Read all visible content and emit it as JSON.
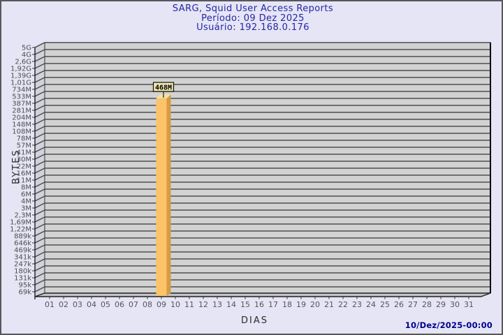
{
  "header": {
    "title": "SARG, Squid User Access Reports",
    "period_line": "Período: 09 Dez 2025",
    "user_line": "Usuário: 192.168.0.176"
  },
  "footer": {
    "timestamp": "10/Dez/2025-00:00"
  },
  "chart_data": {
    "type": "bar",
    "title": "SARG, Squid User Access Reports",
    "subtitle": [
      "Período: 09 Dez 2025",
      "Usuário: 192.168.0.176"
    ],
    "xlabel": "DIAS",
    "ylabel": "BYTES",
    "x_categories": [
      "01",
      "02",
      "03",
      "04",
      "05",
      "06",
      "07",
      "08",
      "09",
      "10",
      "11",
      "12",
      "13",
      "14",
      "15",
      "16",
      "17",
      "18",
      "19",
      "20",
      "21",
      "22",
      "23",
      "24",
      "25",
      "26",
      "27",
      "28",
      "29",
      "30",
      "31"
    ],
    "ytick_labels": [
      "5G",
      "4G",
      "2,6G",
      "1,92G",
      "1,39G",
      "1,01G",
      "734M",
      "533M",
      "387M",
      "281M",
      "204M",
      "148M",
      "108M",
      "78M",
      "57M",
      "41M",
      "30M",
      "22M",
      "16M",
      "11M",
      "8M",
      "6M",
      "4M",
      "3M",
      "2,3M",
      "1,69M",
      "1,22M",
      "889k",
      "646k",
      "469k",
      "341k",
      "247k",
      "180k",
      "131k",
      "95k",
      "69k"
    ],
    "y_scale": "log",
    "grid": true,
    "series": [
      {
        "name": "bytes-per-day",
        "points": [
          {
            "day": "09",
            "value_label": "468M",
            "bytes": 468000000
          }
        ]
      }
    ],
    "colors": {
      "background": "#e5e5f5",
      "plot_back_wall": "#d2d2d2",
      "plot_side_wall": "#c3c3c7",
      "plot_floor": "#c3c3c7",
      "grid_line": "#4f4f4f",
      "axis_edge": "#1e1e1e",
      "bar_front": "#fcc369",
      "bar_side": "#d69b46",
      "bar_top": "#f2e2a2",
      "value_box_bg": "#ece4a9",
      "value_box_border": "#111111",
      "title_text": "#2525a5",
      "timestamp_text": "#00008f",
      "tick_text": "#4d4d4d"
    }
  }
}
